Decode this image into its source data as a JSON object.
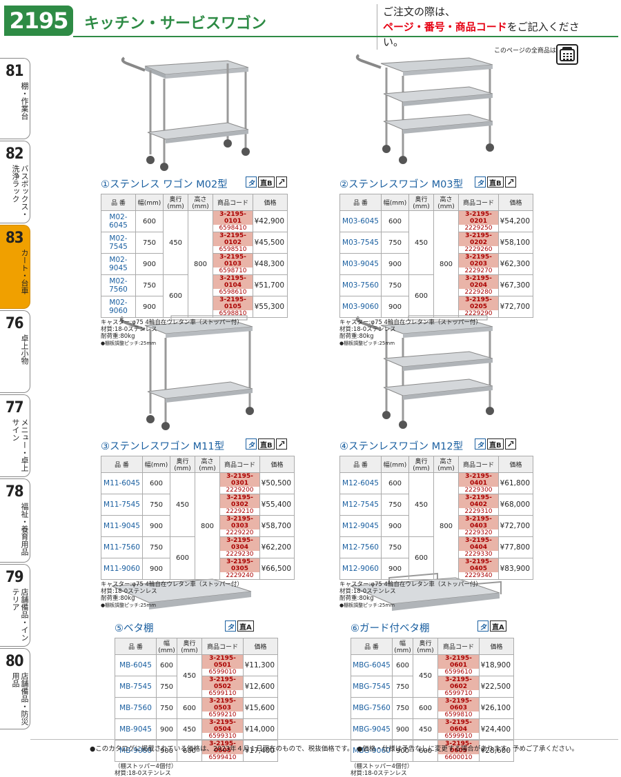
{
  "header": {
    "page_number": "2195",
    "title": "キッチン・サービスワゴン",
    "order_note_line1": "ご注文の際は、",
    "order_note_red": "ページ・番号・商品コード",
    "order_note_suffix": "をご記入ください。",
    "all_items_note": "このページの全商品は"
  },
  "sidebar": [
    {
      "num": "81",
      "label": "棚・作業台"
    },
    {
      "num": "82",
      "label": "バスボックス・洗浄ラック"
    },
    {
      "num": "83",
      "label": "カート・台車"
    },
    {
      "num": "76",
      "label": "卓上小物"
    },
    {
      "num": "77",
      "label": "メニュー・卓上サイン"
    },
    {
      "num": "78",
      "label": "福祉・養育用品"
    },
    {
      "num": "79",
      "label": "店舗備品・インテリア"
    },
    {
      "num": "80",
      "label": "店舗備品・防災用品"
    }
  ],
  "table_headers": {
    "model": "品 番",
    "width": "幅(mm)",
    "depth": "奥行(mm)",
    "height": "高さ(mm)",
    "code": "商品コード",
    "price": "価格"
  },
  "products": [
    {
      "title": "①ステンレス ワゴン M02型",
      "rows": [
        {
          "model": "M02-6045",
          "width": "600",
          "depth": "450",
          "height": "800",
          "code1": "3-2195-0101",
          "code2": "6598410",
          "price": "¥42,900"
        },
        {
          "model": "M02-7545",
          "width": "750",
          "depth": "",
          "height": "",
          "code1": "3-2195-0102",
          "code2": "6598510",
          "price": "¥45,500"
        },
        {
          "model": "M02-9045",
          "width": "900",
          "depth": "",
          "height": "",
          "code1": "3-2195-0103",
          "code2": "6598710",
          "price": "¥48,300"
        },
        {
          "model": "M02-7560",
          "width": "750",
          "depth": "600",
          "height": "",
          "code1": "3-2195-0104",
          "code2": "6598610",
          "price": "¥51,700"
        },
        {
          "model": "M02-9060",
          "width": "900",
          "depth": "",
          "height": "",
          "code1": "3-2195-0105",
          "code2": "6598810",
          "price": "¥55,300"
        }
      ],
      "notes": [
        "キャスター:φ75 4輪自在ウレタン車（ストッパー付）",
        "材質:18-0ステンレス",
        "耐荷重:80kg",
        "●棚板調整ピッチ:25mm"
      ]
    },
    {
      "title": "②ステンレスワゴン M03型",
      "rows": [
        {
          "model": "M03-6045",
          "width": "600",
          "depth": "450",
          "height": "800",
          "code1": "3-2195-0201",
          "code2": "2229250",
          "price": "¥54,200"
        },
        {
          "model": "M03-7545",
          "width": "750",
          "depth": "",
          "height": "",
          "code1": "3-2195-0202",
          "code2": "2229260",
          "price": "¥58,100"
        },
        {
          "model": "M03-9045",
          "width": "900",
          "depth": "",
          "height": "",
          "code1": "3-2195-0203",
          "code2": "2229270",
          "price": "¥62,300"
        },
        {
          "model": "M03-7560",
          "width": "750",
          "depth": "600",
          "height": "",
          "code1": "3-2195-0204",
          "code2": "2229280",
          "price": "¥67,300"
        },
        {
          "model": "M03-9060",
          "width": "900",
          "depth": "",
          "height": "",
          "code1": "3-2195-0205",
          "code2": "2229290",
          "price": "¥72,700"
        }
      ],
      "notes": [
        "キャスター:φ75 4輪自在ウレタン車（ストッパー付）",
        "材質:18-0ステンレス",
        "耐荷重:80kg",
        "●棚板調整ピッチ:25mm"
      ]
    },
    {
      "title": "③ステンレスワゴン M11型",
      "rows": [
        {
          "model": "M11-6045",
          "width": "600",
          "depth": "450",
          "height": "800",
          "code1": "3-2195-0301",
          "code2": "2229200",
          "price": "¥50,500"
        },
        {
          "model": "M11-7545",
          "width": "750",
          "depth": "",
          "height": "",
          "code1": "3-2195-0302",
          "code2": "2229210",
          "price": "¥55,400"
        },
        {
          "model": "M11-9045",
          "width": "900",
          "depth": "",
          "height": "",
          "code1": "3-2195-0303",
          "code2": "2229220",
          "price": "¥58,700"
        },
        {
          "model": "M11-7560",
          "width": "750",
          "depth": "600",
          "height": "",
          "code1": "3-2195-0304",
          "code2": "2229230",
          "price": "¥62,200"
        },
        {
          "model": "M11-9060",
          "width": "900",
          "depth": "",
          "height": "",
          "code1": "3-2195-0305",
          "code2": "2229240",
          "price": "¥66,500"
        }
      ],
      "notes": [
        "キャスター:φ75 4輪自在ウレタン車（ストッパー付）",
        "材質:18-0ステンレス",
        "耐荷重:80kg",
        "●棚板調整ピッチ:25mm"
      ]
    },
    {
      "title": "④ステンレスワゴン M12型",
      "rows": [
        {
          "model": "M12-6045",
          "width": "600",
          "depth": "450",
          "height": "800",
          "code1": "3-2195-0401",
          "code2": "2229300",
          "price": "¥61,800"
        },
        {
          "model": "M12-7545",
          "width": "750",
          "depth": "",
          "height": "",
          "code1": "3-2195-0402",
          "code2": "2229310",
          "price": "¥68,000"
        },
        {
          "model": "M12-9045",
          "width": "900",
          "depth": "",
          "height": "",
          "code1": "3-2195-0403",
          "code2": "2229320",
          "price": "¥72,700"
        },
        {
          "model": "M12-7560",
          "width": "750",
          "depth": "600",
          "height": "",
          "code1": "3-2195-0404",
          "code2": "2229330",
          "price": "¥77,800"
        },
        {
          "model": "M12-9060",
          "width": "900",
          "depth": "",
          "height": "",
          "code1": "3-2195-0405",
          "code2": "2229340",
          "price": "¥83,900"
        }
      ],
      "notes": [
        "キャスター:φ75 4輪自在ウレタン車（ストッパー付）",
        "材質:18-0ステンレス",
        "耐荷重:80kg",
        "●棚板調整ピッチ:25mm"
      ]
    },
    {
      "title": "⑤ベタ棚",
      "rows": [
        {
          "model": "MB-6045",
          "width": "600",
          "depth": "450",
          "code1": "3-2195-0501",
          "code2": "6599010",
          "price": "¥11,300"
        },
        {
          "model": "MB-7545",
          "width": "750",
          "depth": "",
          "code1": "3-2195-0502",
          "code2": "6599110",
          "price": "¥12,600"
        },
        {
          "model": "MB-7560",
          "width": "750",
          "depth": "600",
          "code1": "3-2195-0503",
          "code2": "6599210",
          "price": "¥15,600"
        },
        {
          "model": "MB-9045",
          "width": "900",
          "depth": "450",
          "code1": "3-2195-0504",
          "code2": "6599310",
          "price": "¥14,000"
        },
        {
          "model": "MB-9060",
          "width": "900",
          "depth": "600",
          "code1": "3-2195-0505",
          "code2": "6599410",
          "price": "¥17,400"
        }
      ],
      "notes": [
        "（棚ストッパー4個付）",
        "材質:18-0ステンレス"
      ]
    },
    {
      "title": "⑥ガード付ベタ棚",
      "rows": [
        {
          "model": "MBG-6045",
          "width": "600",
          "depth": "450",
          "code1": "3-2195-0601",
          "code2": "6599610",
          "price": "¥18,900"
        },
        {
          "model": "MBG-7545",
          "width": "750",
          "depth": "",
          "code1": "3-2195-0602",
          "code2": "6599710",
          "price": "¥22,500"
        },
        {
          "model": "MBG-7560",
          "width": "750",
          "depth": "600",
          "code1": "3-2195-0603",
          "code2": "6599810",
          "price": "¥26,100"
        },
        {
          "model": "MBG-9045",
          "width": "900",
          "depth": "450",
          "code1": "3-2195-0604",
          "code2": "6599910",
          "price": "¥24,400"
        },
        {
          "model": "MBG-9060",
          "width": "900",
          "depth": "600",
          "code1": "3-2195-0605",
          "code2": "6600010",
          "price": "¥28,600"
        }
      ],
      "notes": [
        "（棚ストッパー4個付）",
        "材質:18-0ステンレス"
      ]
    }
  ],
  "badges": {
    "ta": "タ",
    "jiki": "直B",
    "jiki_a": "直A"
  },
  "footer": "●このカタログに掲載されている価格は、2023年４月１日現在のもので、税抜価格です。　●価格・仕様は予告なしに変更する場合があります。予めご了承ください。"
}
